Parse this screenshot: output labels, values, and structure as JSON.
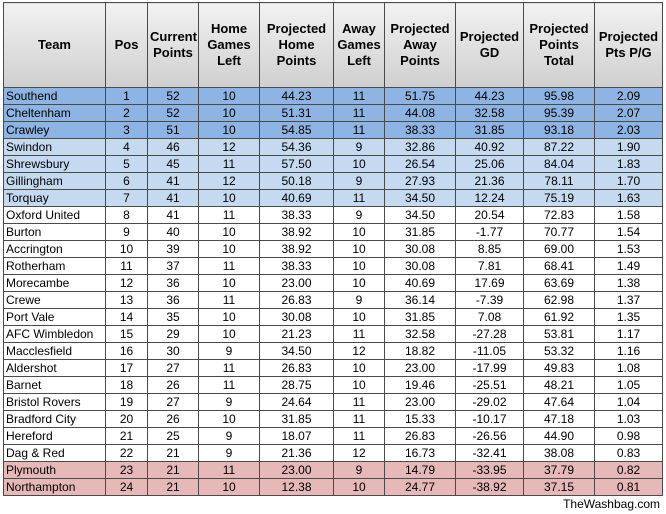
{
  "table": {
    "headers": [
      "Team",
      "Pos",
      "Current Points",
      "Home Games Left",
      "Projected Home Points",
      "Away Games Left",
      "Projected Away Points",
      "Projected GD",
      "Projected Points Total",
      "Projected Pts P/G"
    ],
    "rows": [
      [
        "Southend",
        "1",
        "52",
        "10",
        "44.23",
        "11",
        "51.75",
        "44.23",
        "95.98",
        "2.09"
      ],
      [
        "Cheltenham",
        "2",
        "52",
        "10",
        "51.31",
        "11",
        "44.08",
        "32.58",
        "95.39",
        "2.07"
      ],
      [
        "Crawley",
        "3",
        "51",
        "10",
        "54.85",
        "11",
        "38.33",
        "31.85",
        "93.18",
        "2.03"
      ],
      [
        "Swindon",
        "4",
        "46",
        "12",
        "54.36",
        "9",
        "32.86",
        "40.92",
        "87.22",
        "1.90"
      ],
      [
        "Shrewsbury",
        "5",
        "45",
        "11",
        "57.50",
        "10",
        "26.54",
        "25.06",
        "84.04",
        "1.83"
      ],
      [
        "Gillingham",
        "6",
        "41",
        "12",
        "50.18",
        "9",
        "27.93",
        "21.36",
        "78.11",
        "1.70"
      ],
      [
        "Torquay",
        "7",
        "41",
        "10",
        "40.69",
        "11",
        "34.50",
        "12.24",
        "75.19",
        "1.63"
      ],
      [
        "Oxford United",
        "8",
        "41",
        "11",
        "38.33",
        "9",
        "34.50",
        "20.54",
        "72.83",
        "1.58"
      ],
      [
        "Burton",
        "9",
        "40",
        "10",
        "38.92",
        "10",
        "31.85",
        "-1.77",
        "70.77",
        "1.54"
      ],
      [
        "Accrington",
        "10",
        "39",
        "10",
        "38.92",
        "10",
        "30.08",
        "8.85",
        "69.00",
        "1.53"
      ],
      [
        "Rotherham",
        "11",
        "37",
        "11",
        "38.33",
        "10",
        "30.08",
        "7.81",
        "68.41",
        "1.49"
      ],
      [
        "Morecambe",
        "12",
        "36",
        "10",
        "23.00",
        "10",
        "40.69",
        "17.69",
        "63.69",
        "1.38"
      ],
      [
        "Crewe",
        "13",
        "36",
        "11",
        "26.83",
        "9",
        "36.14",
        "-7.39",
        "62.98",
        "1.37"
      ],
      [
        "Port Vale",
        "14",
        "35",
        "10",
        "30.08",
        "10",
        "31.85",
        "7.08",
        "61.92",
        "1.35"
      ],
      [
        "AFC Wimbledon",
        "15",
        "29",
        "10",
        "21.23",
        "11",
        "32.58",
        "-27.28",
        "53.81",
        "1.17"
      ],
      [
        "Macclesfield",
        "16",
        "30",
        "9",
        "34.50",
        "12",
        "18.82",
        "-11.05",
        "53.32",
        "1.16"
      ],
      [
        "Aldershot",
        "17",
        "27",
        "11",
        "26.83",
        "10",
        "23.00",
        "-17.99",
        "49.83",
        "1.08"
      ],
      [
        "Barnet",
        "18",
        "26",
        "11",
        "28.75",
        "10",
        "19.46",
        "-25.51",
        "48.21",
        "1.05"
      ],
      [
        "Bristol Rovers",
        "19",
        "27",
        "9",
        "24.64",
        "11",
        "23.00",
        "-29.02",
        "47.64",
        "1.04"
      ],
      [
        "Bradford City",
        "20",
        "26",
        "10",
        "31.85",
        "11",
        "15.33",
        "-10.17",
        "47.18",
        "1.03"
      ],
      [
        "Hereford",
        "21",
        "25",
        "9",
        "18.07",
        "11",
        "26.83",
        "-26.56",
        "44.90",
        "0.98"
      ],
      [
        "Dag & Red",
        "22",
        "21",
        "9",
        "21.36",
        "12",
        "16.73",
        "-32.41",
        "38.08",
        "0.83"
      ],
      [
        "Plymouth",
        "23",
        "21",
        "11",
        "23.00",
        "9",
        "14.79",
        "-33.95",
        "37.79",
        "0.82"
      ],
      [
        "Northampton",
        "24",
        "21",
        "10",
        "12.38",
        "10",
        "24.77",
        "-38.92",
        "37.15",
        "0.81"
      ]
    ]
  },
  "footer": {
    "text": "TheWashbag.com"
  }
}
